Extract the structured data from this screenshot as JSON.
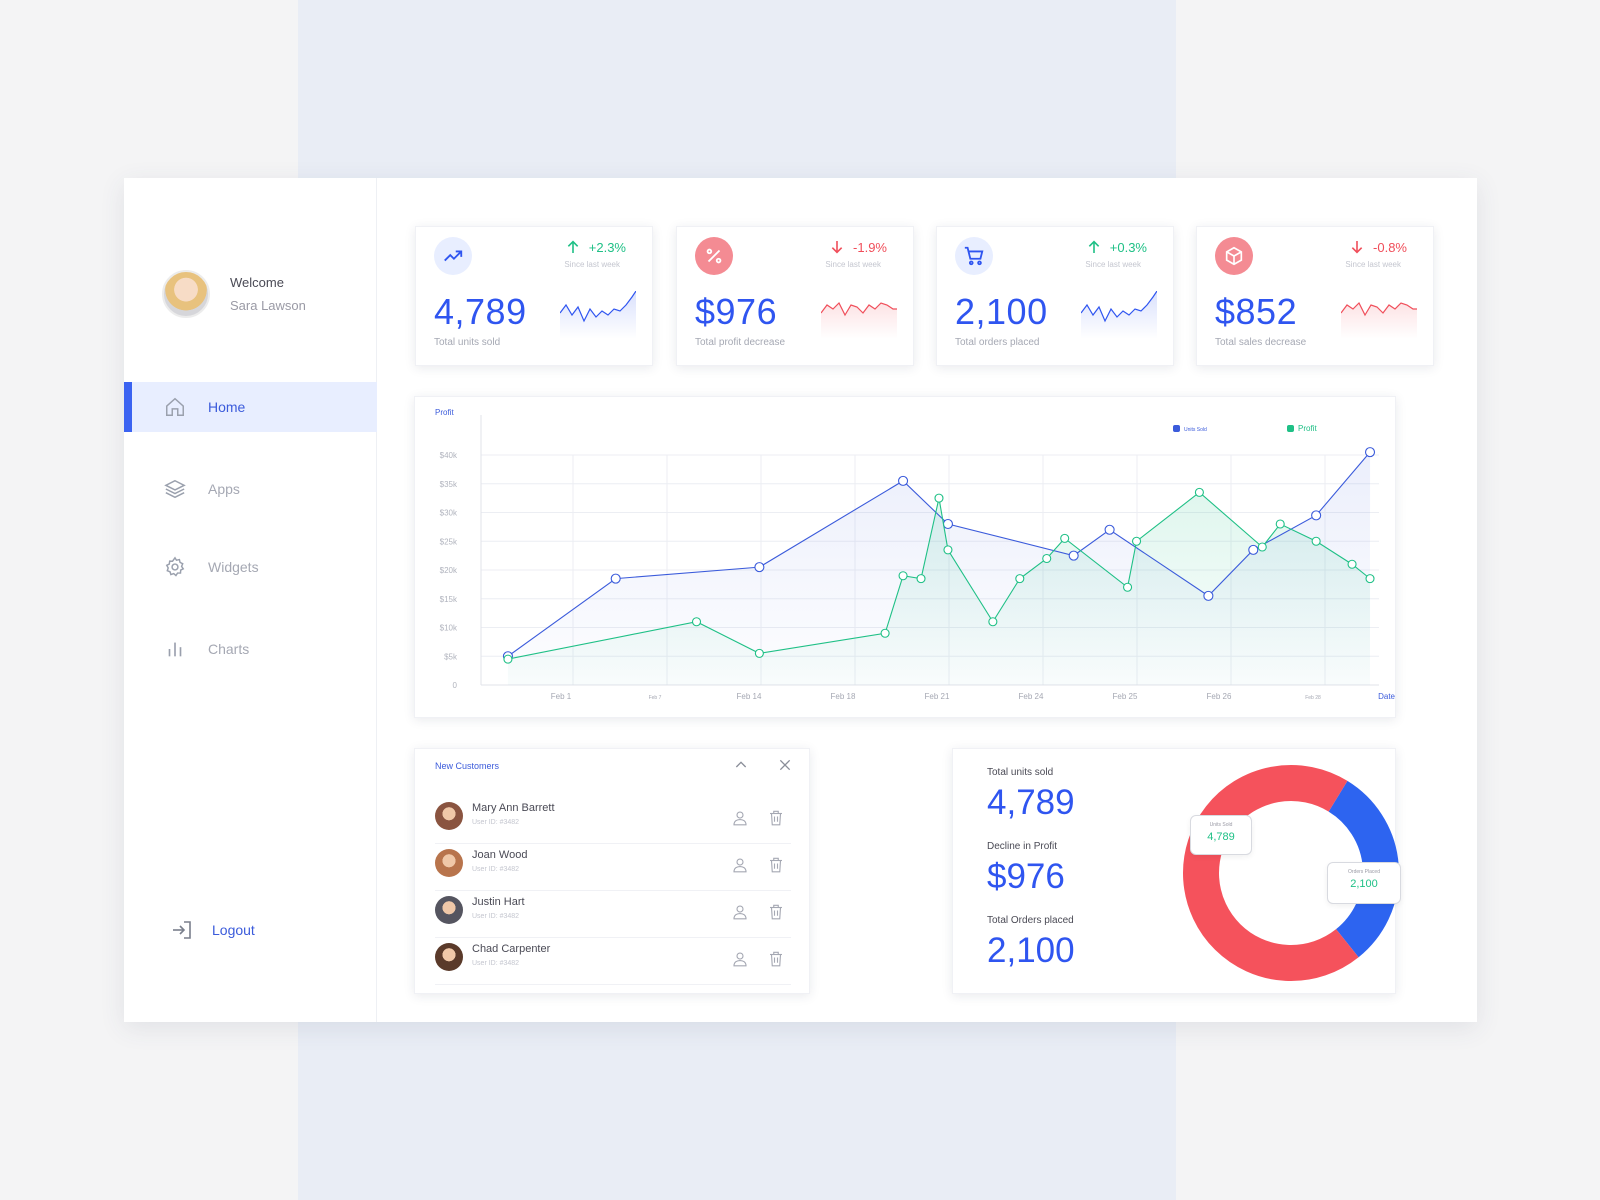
{
  "user": {
    "greeting": "Welcome",
    "name": "Sara Lawson"
  },
  "nav": [
    {
      "label": "Home",
      "icon": "home-icon",
      "active": true
    },
    {
      "label": "Apps",
      "icon": "layers-icon",
      "active": false
    },
    {
      "label": "Widgets",
      "icon": "gear-icon",
      "active": false
    },
    {
      "label": "Charts",
      "icon": "bar-chart-icon",
      "active": false
    }
  ],
  "logout_label": "Logout",
  "stats": [
    {
      "icon": "trending-up-icon",
      "delta": "+2.3%",
      "direction": "up",
      "since": "Since last week",
      "value": "4,789",
      "caption": "Total units sold",
      "color": "#2f55f0"
    },
    {
      "icon": "percent-icon",
      "delta": "-1.9%",
      "direction": "down",
      "since": "Since last week",
      "value": "$976",
      "caption": "Total profit decrease",
      "color": "#f04e5a"
    },
    {
      "icon": "cart-icon",
      "delta": "+0.3%",
      "direction": "up",
      "since": "Since last week",
      "value": "2,100",
      "caption": "Total orders placed",
      "color": "#2f55f0"
    },
    {
      "icon": "box-icon",
      "delta": "-0.8%",
      "direction": "down",
      "since": "Since last week",
      "value": "$852",
      "caption": "Total sales decrease",
      "color": "#f04e5a"
    }
  ],
  "chart_data": {
    "type": "line",
    "title": "Profit",
    "xlabel": "Date",
    "y_ticks": [
      "0",
      "$5k",
      "$10k",
      "$15k",
      "$20k",
      "$25k",
      "$30k",
      "$35k",
      "$40k"
    ],
    "x_ticks": [
      "Feb 1",
      "Feb 7",
      "Feb 14",
      "Feb 18",
      "Feb 21",
      "Feb 24",
      "Feb 25",
      "Feb 26",
      "Feb 28"
    ],
    "ylim": [
      0,
      40000
    ],
    "legend_position": "top-right",
    "grid": true,
    "series": [
      {
        "name": "Units Sold",
        "color": "#3b5bdb",
        "x": [
          0.03,
          0.15,
          0.31,
          0.47,
          0.52,
          0.66,
          0.7,
          0.81,
          0.86,
          0.93,
          0.99
        ],
        "y": [
          5000,
          18500,
          20500,
          35500,
          28000,
          22500,
          27000,
          15500,
          23500,
          29500,
          40500
        ]
      },
      {
        "name": "Profit",
        "color": "#1fc086",
        "x": [
          0.03,
          0.24,
          0.31,
          0.45,
          0.47,
          0.49,
          0.51,
          0.52,
          0.57,
          0.6,
          0.63,
          0.65,
          0.72,
          0.73,
          0.8,
          0.87,
          0.89,
          0.93,
          0.97,
          0.99
        ],
        "y": [
          4500,
          11000,
          5500,
          9000,
          19000,
          18500,
          32500,
          23500,
          11000,
          18500,
          22000,
          25500,
          17000,
          25000,
          33500,
          24000,
          28000,
          25000,
          21000,
          18500
        ]
      }
    ]
  },
  "customers": {
    "title": "New Customers",
    "rows": [
      {
        "name": "Mary Ann Barrett",
        "uid": "User ID: #3482",
        "color": "#8a5440"
      },
      {
        "name": "Joan Wood",
        "uid": "User ID: #3482",
        "color": "#b8744c"
      },
      {
        "name": "Justin Hart",
        "uid": "User ID: #3482",
        "color": "#555560"
      },
      {
        "name": "Chad Carpenter",
        "uid": "User ID: #3482",
        "color": "#5a3a2a"
      }
    ]
  },
  "summary": {
    "items": [
      {
        "label": "Total units sold",
        "value": "4,789"
      },
      {
        "label": "Decline in Profit",
        "value": "$976"
      },
      {
        "label": "Total Orders placed",
        "value": "2,100"
      }
    ],
    "donut": {
      "segments": [
        {
          "name": "Units Sold",
          "value": 4789,
          "color": "#f5525c"
        },
        {
          "name": "Orders Placed",
          "value": 2100,
          "color": "#2d64f0"
        }
      ],
      "tooltips": [
        {
          "label": "Units Sold",
          "value": "4,789"
        },
        {
          "label": "Orders Placed",
          "value": "2,100"
        }
      ]
    }
  }
}
